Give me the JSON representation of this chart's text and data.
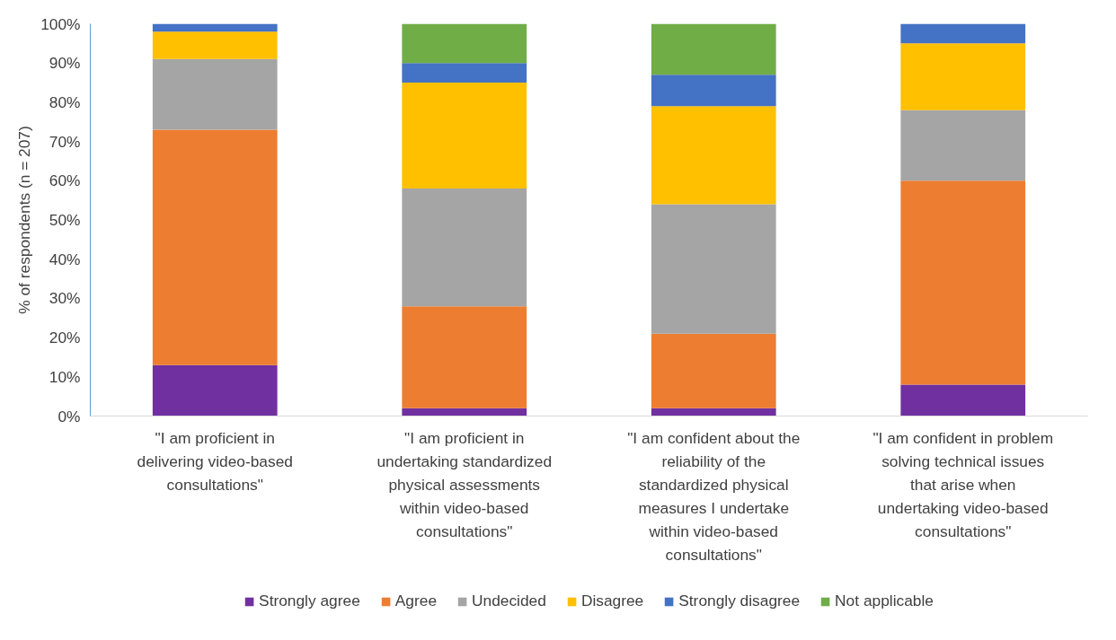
{
  "chart_data": {
    "type": "bar",
    "stacked": true,
    "ylabel": "% of respondents (n = 207)",
    "categories": [
      "\"I am proficient in delivering video-based consultations\"",
      "\"I am proficient in undertaking standardized physical assessments within video-based consultations\"",
      "\"I am confident about the reliability of the standardized physical measures I undertake within video-based consultations\"",
      "\"I am confident in problem solving technical issues that arise when undertaking video-based consultations\""
    ],
    "series": [
      {
        "name": "Strongly agree",
        "color": "#7030a0",
        "values": [
          13,
          2,
          2,
          8
        ]
      },
      {
        "name": "Agree",
        "color": "#ed7d31",
        "values": [
          60,
          26,
          19,
          52
        ]
      },
      {
        "name": "Undecided",
        "color": "#a5a5a5",
        "values": [
          18,
          30,
          33,
          18
        ]
      },
      {
        "name": "Disagree",
        "color": "#ffc000",
        "values": [
          7,
          27,
          25,
          17
        ]
      },
      {
        "name": "Strongly disagree",
        "color": "#4472c4",
        "values": [
          2,
          5,
          8,
          5
        ]
      },
      {
        "name": "Not applicable",
        "color": "#70ad47",
        "values": [
          0,
          10,
          13,
          0
        ]
      }
    ],
    "ylim": [
      0,
      100
    ],
    "yticks": [
      {
        "value": 0,
        "label": "0%"
      },
      {
        "value": 10,
        "label": "10%"
      },
      {
        "value": 20,
        "label": "20%"
      },
      {
        "value": 30,
        "label": "30%"
      },
      {
        "value": 40,
        "label": "40%"
      },
      {
        "value": 50,
        "label": "50%"
      },
      {
        "value": 60,
        "label": "60%"
      },
      {
        "value": 70,
        "label": "70%"
      },
      {
        "value": 80,
        "label": "80%"
      },
      {
        "value": 90,
        "label": "90%"
      },
      {
        "value": 100,
        "label": "100%"
      }
    ],
    "grid": false,
    "legend": "bottom"
  }
}
